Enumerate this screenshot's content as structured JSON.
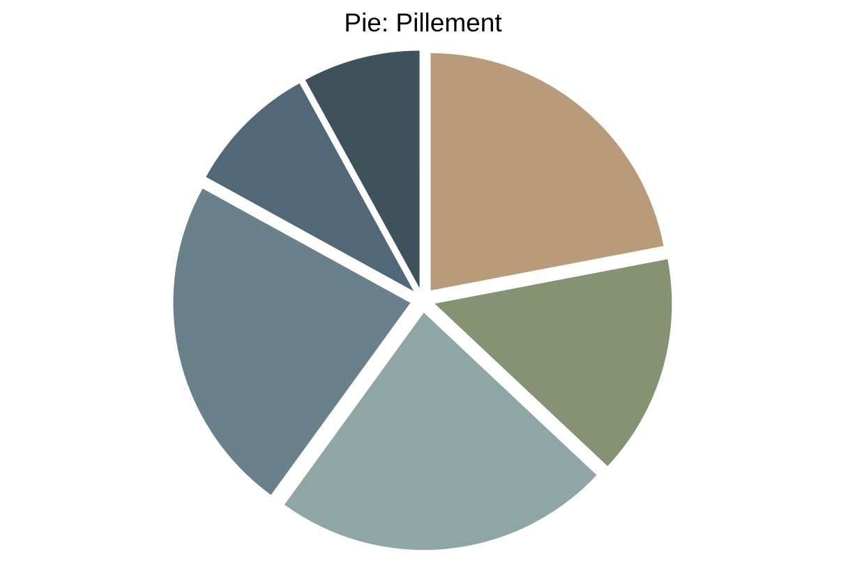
{
  "chart_data": {
    "type": "pie",
    "title": "Pie: Pillement",
    "start_angle_deg": 90,
    "direction": "clockwise",
    "slices": [
      {
        "value": 22,
        "color": "#B99B7B"
      },
      {
        "value": 15,
        "color": "#869274"
      },
      {
        "value": 23,
        "color": "#90A5A6"
      },
      {
        "value": 23,
        "color": "#6A808A"
      },
      {
        "value": 9,
        "color": "#536876"
      },
      {
        "value": 8,
        "color": "#3F525B"
      }
    ],
    "exploded": true,
    "labels_shown": false,
    "legend": "none"
  }
}
